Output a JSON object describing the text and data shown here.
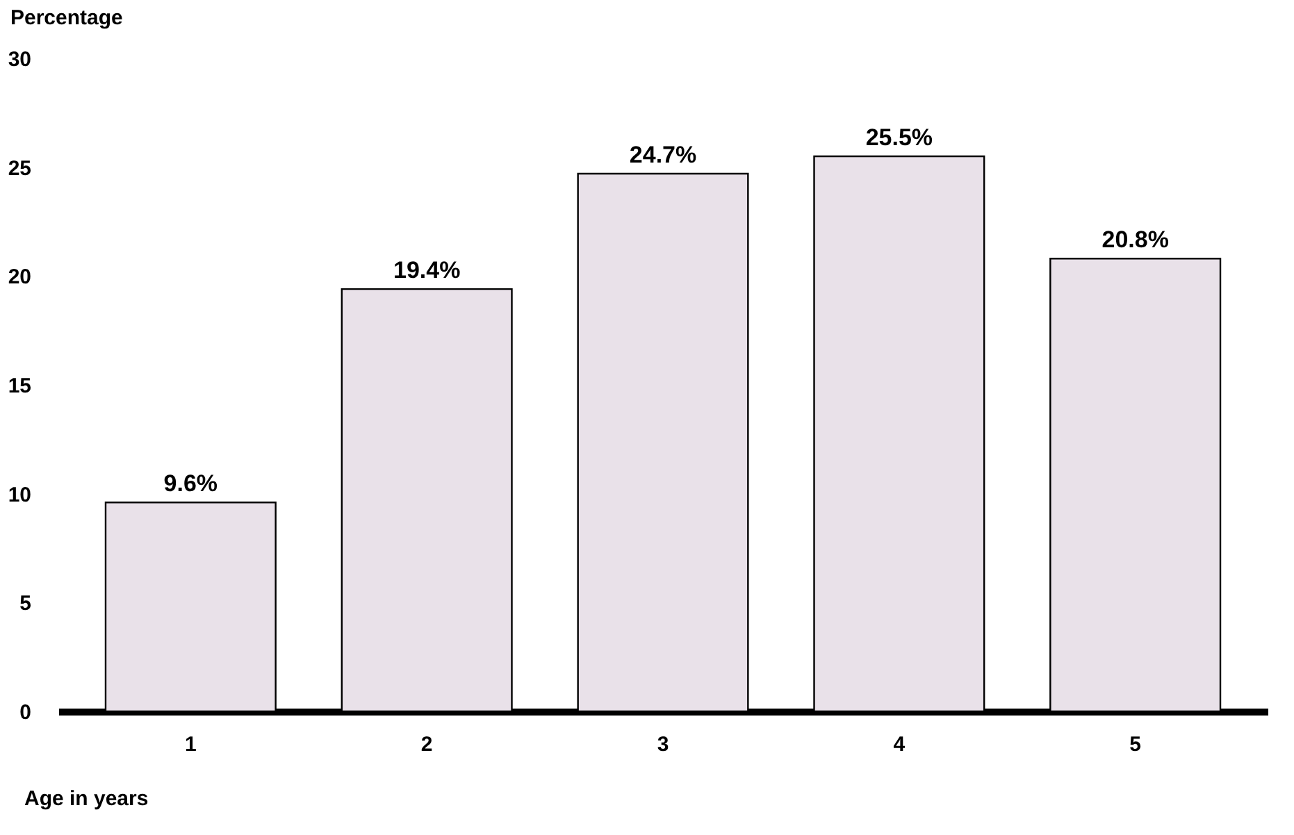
{
  "chart_data": {
    "type": "bar",
    "ylabel": "Percentage",
    "xlabel": "Age in years",
    "categories": [
      "1",
      "2",
      "3",
      "4",
      "5"
    ],
    "values": [
      9.6,
      19.4,
      24.7,
      25.5,
      20.8
    ],
    "value_labels": [
      "9.6%",
      "19.4%",
      "24.7%",
      "25.5%",
      "20.8%"
    ],
    "color": "#e9e1e9",
    "ylim": [
      0,
      30
    ],
    "yticks": [
      0,
      5,
      10,
      15,
      20,
      25,
      30
    ],
    "grid": false
  }
}
